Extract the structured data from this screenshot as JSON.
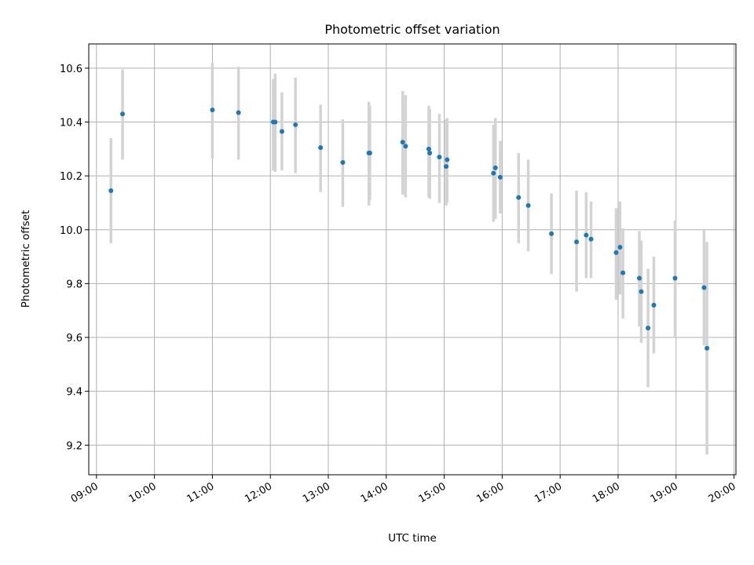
{
  "chart_data": {
    "type": "scatter",
    "title": "Photometric offset variation",
    "xlabel": "UTC time",
    "ylabel": "Photometric offset",
    "x_unit": "hour of day (UTC)",
    "xlim": [
      "08:52",
      "20:02"
    ],
    "ylim": [
      9.09,
      10.69
    ],
    "x_ticks": [
      "09:00",
      "10:00",
      "11:00",
      "12:00",
      "13:00",
      "14:00",
      "15:00",
      "16:00",
      "17:00",
      "18:00",
      "19:00",
      "20:00"
    ],
    "y_ticks": [
      "9.2",
      "9.4",
      "9.6",
      "9.8",
      "10.0",
      "10.2",
      "10.4",
      "10.6"
    ],
    "grid": true,
    "x_tick_rotation": 30,
    "colors": {
      "marker": "#1f77b4",
      "errorbar": "#d3d3d3"
    },
    "points": [
      {
        "t": "09:15",
        "y": 10.145,
        "lo": 9.95,
        "hi": 10.34
      },
      {
        "t": "09:27",
        "y": 10.43,
        "lo": 10.26,
        "hi": 10.595
      },
      {
        "t": "11:00",
        "y": 10.445,
        "lo": 10.265,
        "hi": 10.62
      },
      {
        "t": "11:27",
        "y": 10.435,
        "lo": 10.26,
        "hi": 10.605
      },
      {
        "t": "12:03",
        "y": 10.4,
        "lo": 10.22,
        "hi": 10.56
      },
      {
        "t": "12:05",
        "y": 10.4,
        "lo": 10.215,
        "hi": 10.58
      },
      {
        "t": "12:12",
        "y": 10.365,
        "lo": 10.22,
        "hi": 10.51
      },
      {
        "t": "12:26",
        "y": 10.39,
        "lo": 10.21,
        "hi": 10.565
      },
      {
        "t": "12:52",
        "y": 10.305,
        "lo": 10.14,
        "hi": 10.465
      },
      {
        "t": "13:15",
        "y": 10.25,
        "lo": 10.085,
        "hi": 10.41
      },
      {
        "t": "13:42",
        "y": 10.285,
        "lo": 10.09,
        "hi": 10.475
      },
      {
        "t": "13:43",
        "y": 10.285,
        "lo": 10.11,
        "hi": 10.46
      },
      {
        "t": "14:17",
        "y": 10.325,
        "lo": 10.13,
        "hi": 10.515
      },
      {
        "t": "14:20",
        "y": 10.31,
        "lo": 10.12,
        "hi": 10.5
      },
      {
        "t": "14:44",
        "y": 10.3,
        "lo": 10.12,
        "hi": 10.46
      },
      {
        "t": "14:45",
        "y": 10.285,
        "lo": 10.115,
        "hi": 10.45
      },
      {
        "t": "14:55",
        "y": 10.27,
        "lo": 10.1,
        "hi": 10.43
      },
      {
        "t": "15:02",
        "y": 10.235,
        "lo": 10.09,
        "hi": 10.41
      },
      {
        "t": "15:03",
        "y": 10.26,
        "lo": 10.1,
        "hi": 10.415
      },
      {
        "t": "15:51",
        "y": 10.21,
        "lo": 10.03,
        "hi": 10.39
      },
      {
        "t": "15:53",
        "y": 10.23,
        "lo": 10.04,
        "hi": 10.415
      },
      {
        "t": "15:58",
        "y": 10.195,
        "lo": 10.06,
        "hi": 10.33
      },
      {
        "t": "16:17",
        "y": 10.12,
        "lo": 9.95,
        "hi": 10.285
      },
      {
        "t": "16:27",
        "y": 10.09,
        "lo": 9.92,
        "hi": 10.26
      },
      {
        "t": "16:51",
        "y": 9.985,
        "lo": 9.835,
        "hi": 10.135
      },
      {
        "t": "17:17",
        "y": 9.955,
        "lo": 9.77,
        "hi": 10.145
      },
      {
        "t": "17:27",
        "y": 9.98,
        "lo": 9.82,
        "hi": 10.14
      },
      {
        "t": "17:32",
        "y": 9.965,
        "lo": 9.82,
        "hi": 10.105
      },
      {
        "t": "17:58",
        "y": 9.915,
        "lo": 9.74,
        "hi": 10.08
      },
      {
        "t": "18:02",
        "y": 9.935,
        "lo": 9.76,
        "hi": 10.105
      },
      {
        "t": "18:05",
        "y": 9.84,
        "lo": 9.67,
        "hi": 10.005
      },
      {
        "t": "18:22",
        "y": 9.82,
        "lo": 9.64,
        "hi": 9.995
      },
      {
        "t": "18:24",
        "y": 9.77,
        "lo": 9.58,
        "hi": 9.96
      },
      {
        "t": "18:31",
        "y": 9.635,
        "lo": 9.415,
        "hi": 9.855
      },
      {
        "t": "18:37",
        "y": 9.72,
        "lo": 9.54,
        "hi": 9.9
      },
      {
        "t": "18:59",
        "y": 9.82,
        "lo": 9.6,
        "hi": 10.035
      },
      {
        "t": "19:29",
        "y": 9.785,
        "lo": 9.57,
        "hi": 10.0
      },
      {
        "t": "19:32",
        "y": 9.56,
        "lo": 9.165,
        "hi": 9.955
      }
    ]
  }
}
